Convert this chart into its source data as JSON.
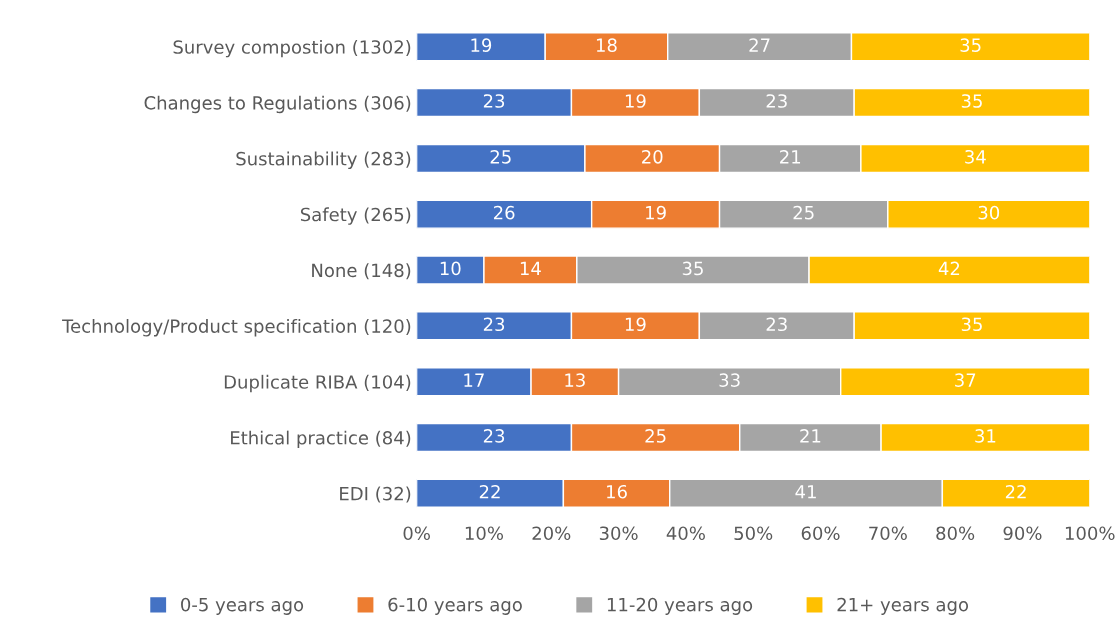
{
  "chart_data": {
    "type": "bar",
    "orientation": "horizontal",
    "stacked": true,
    "categories": [
      "Survey compostion (1302)",
      "Changes to Regulations (306)",
      "Sustainability (283)",
      "Safety (265)",
      "None (148)",
      "Technology/Product specification (120)",
      "Duplicate RIBA (104)",
      "Ethical practice (84)",
      "EDI (32)"
    ],
    "series": [
      {
        "name": "0-5 years ago",
        "color": "#4472c4",
        "values": [
          19.1,
          23,
          25,
          26,
          10,
          23,
          17,
          23,
          21.8
        ],
        "value_labels": [
          "19",
          "23",
          "25",
          "26",
          "10",
          "23",
          "17",
          "23",
          "22"
        ]
      },
      {
        "name": "6-10 years ago",
        "color": "#ed7d31",
        "values": [
          18.2,
          19,
          20,
          19,
          13.8,
          19,
          13,
          25,
          15.8
        ],
        "value_labels": [
          "18",
          "19",
          "20",
          "19",
          "14",
          "19",
          "13",
          "25",
          "16"
        ]
      },
      {
        "name": "11-20 years ago",
        "color": "#a5a5a5",
        "values": [
          27.3,
          23,
          21,
          25,
          34.5,
          23,
          33,
          21,
          40.5
        ],
        "value_labels": [
          "27",
          "23",
          "21",
          "25",
          "35",
          "23",
          "33",
          "21",
          "41"
        ]
      },
      {
        "name": "21+ years ago",
        "color": "#ffc000",
        "values": [
          35.4,
          35,
          34,
          30,
          41.7,
          35,
          37,
          31,
          21.9
        ],
        "value_labels": [
          "35",
          "35",
          "34",
          "30",
          "42",
          "35",
          "37",
          "31",
          "22"
        ]
      }
    ],
    "xlim": [
      0,
      100
    ],
    "xticks": [
      {
        "value": 0,
        "label": "0%"
      },
      {
        "value": 10,
        "label": "10%"
      },
      {
        "value": 20,
        "label": "20%"
      },
      {
        "value": 30,
        "label": "30%"
      },
      {
        "value": 40,
        "label": "40%"
      },
      {
        "value": 50,
        "label": "50%"
      },
      {
        "value": 60,
        "label": "60%"
      },
      {
        "value": 70,
        "label": "70%"
      },
      {
        "value": 80,
        "label": "80%"
      },
      {
        "value": 90,
        "label": "90%"
      },
      {
        "value": 100,
        "label": "100%"
      }
    ],
    "grid": false,
    "legend": "bottom"
  }
}
